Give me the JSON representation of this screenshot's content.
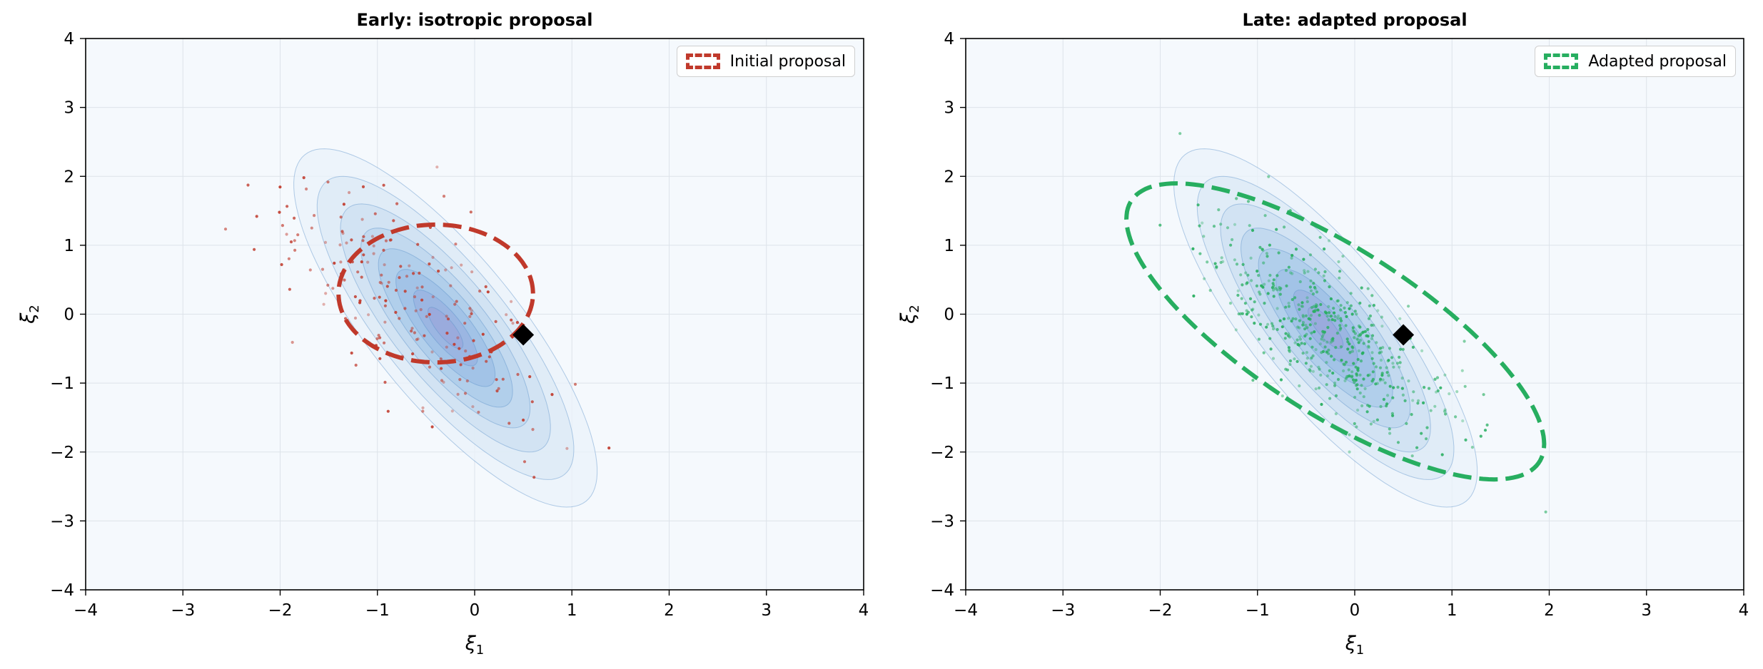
{
  "chart_data": [
    {
      "type": "scatter",
      "title": "Early: isotropic proposal",
      "xlabel": "ξ1",
      "ylabel": "ξ2",
      "xlim": [
        -4,
        4
      ],
      "ylim": [
        -4,
        4
      ],
      "xticks": [
        "−4",
        "−3",
        "−2",
        "−1",
        "0",
        "1",
        "2",
        "3",
        "4"
      ],
      "yticks": [
        "−4",
        "−3",
        "−2",
        "−1",
        "0",
        "1",
        "2",
        "3",
        "4"
      ],
      "grid": true,
      "legend": {
        "placement": "top-right",
        "entries": [
          {
            "label": "Initial proposal",
            "color": "#c0392b"
          }
        ]
      },
      "target_density": {
        "center": [
          -0.3,
          -0.2
        ],
        "sd": [
          0.6,
          1.0
        ],
        "correlation": -0.8,
        "color": "#3b8fd6"
      },
      "proposal_ellipse": {
        "center": [
          -0.4,
          0.3
        ],
        "semi_axes": [
          1.0,
          1.0
        ],
        "color": "#c0392b"
      },
      "marker": {
        "x": 0.5,
        "y": -0.3,
        "shape": "diamond",
        "color": "#000000"
      },
      "samples": {
        "color": "#c0392b",
        "count": 200,
        "center": [
          -0.7,
          0.3
        ],
        "sd": [
          0.75,
          0.95
        ],
        "correlation": -0.65
      }
    },
    {
      "type": "scatter",
      "title": "Late: adapted proposal",
      "xlabel": "ξ1",
      "ylabel": "ξ2",
      "xlim": [
        -4,
        4
      ],
      "ylim": [
        -4,
        4
      ],
      "xticks": [
        "−4",
        "−3",
        "−2",
        "−1",
        "0",
        "1",
        "2",
        "3",
        "4"
      ],
      "yticks": [
        "−4",
        "−3",
        "−2",
        "−1",
        "0",
        "1",
        "2",
        "3",
        "4"
      ],
      "grid": true,
      "legend": {
        "placement": "top-right",
        "entries": [
          {
            "label": "Adapted proposal",
            "color": "#27ae60"
          }
        ]
      },
      "target_density": {
        "center": [
          -0.3,
          -0.2
        ],
        "sd": [
          0.6,
          1.0
        ],
        "correlation": -0.8,
        "color": "#3b8fd6"
      },
      "proposal_ellipse": {
        "center": [
          -0.2,
          -0.25
        ],
        "semi_axes": [
          2.85,
          1.05
        ],
        "angle_deg": -45,
        "color": "#27ae60"
      },
      "marker": {
        "x": 0.5,
        "y": -0.3,
        "shape": "diamond",
        "color": "#000000"
      },
      "samples": {
        "color": "#27ae60",
        "count": 520,
        "center": [
          -0.3,
          -0.25
        ],
        "sd": [
          0.6,
          0.78
        ],
        "correlation": -0.75
      }
    }
  ]
}
